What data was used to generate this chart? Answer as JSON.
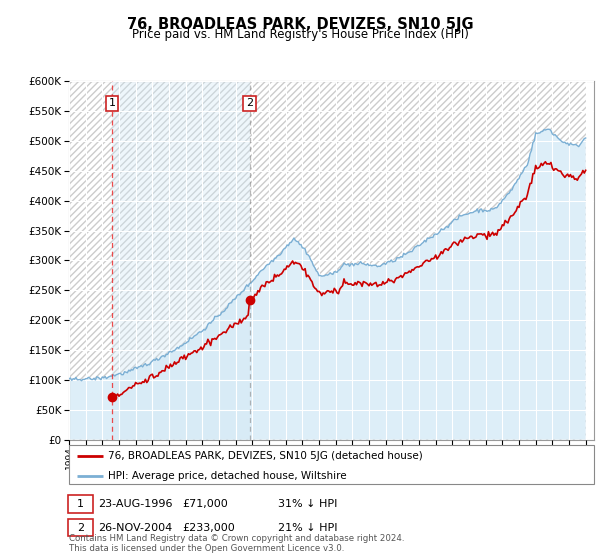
{
  "title": "76, BROADLEAS PARK, DEVIZES, SN10 5JG",
  "subtitle": "Price paid vs. HM Land Registry's House Price Index (HPI)",
  "property_label": "76, BROADLEAS PARK, DEVIZES, SN10 5JG (detached house)",
  "hpi_label": "HPI: Average price, detached house, Wiltshire",
  "sale1_date": "23-AUG-1996",
  "sale1_price": 71000,
  "sale1_note": "31% ↓ HPI",
  "sale2_date": "26-NOV-2004",
  "sale2_price": 233000,
  "sale2_note": "21% ↓ HPI",
  "footer": "Contains HM Land Registry data © Crown copyright and database right 2024.\nThis data is licensed under the Open Government Licence v3.0.",
  "ylim": [
    0,
    600000
  ],
  "yticks": [
    0,
    50000,
    100000,
    150000,
    200000,
    250000,
    300000,
    350000,
    400000,
    450000,
    500000,
    550000,
    600000
  ],
  "property_color": "#cc0000",
  "hpi_line_color": "#7bafd4",
  "hpi_fill_color": "#ddeeff",
  "background_color": "#ffffff",
  "hatch_bg_color": "#f0f0f0",
  "sale_vline_color": "#dd0000",
  "grid_color": "#aabbcc"
}
